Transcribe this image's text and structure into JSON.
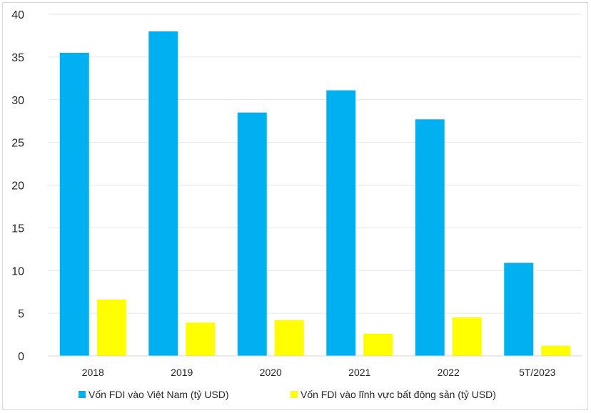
{
  "chart_data": {
    "type": "bar",
    "categories": [
      "2018",
      "2019",
      "2020",
      "2021",
      "2022",
      "5T/2023"
    ],
    "series": [
      {
        "name": "Vốn FDI vào Việt Nam (tỷ USD)",
        "color": "#00b0f0",
        "values": [
          35.5,
          38.0,
          28.5,
          31.1,
          27.7,
          10.9
        ]
      },
      {
        "name": "Vốn FDI vào lĩnh vực bất động sản (tỷ USD)",
        "color": "#ffff00",
        "values": [
          6.6,
          3.9,
          4.2,
          2.6,
          4.5,
          1.2
        ]
      }
    ],
    "ylim": [
      0,
      40
    ],
    "yticks": [
      0,
      5,
      10,
      15,
      20,
      25,
      30,
      35,
      40
    ],
    "grid": true,
    "legend_position": "bottom",
    "title": "",
    "xlabel": "",
    "ylabel": ""
  }
}
